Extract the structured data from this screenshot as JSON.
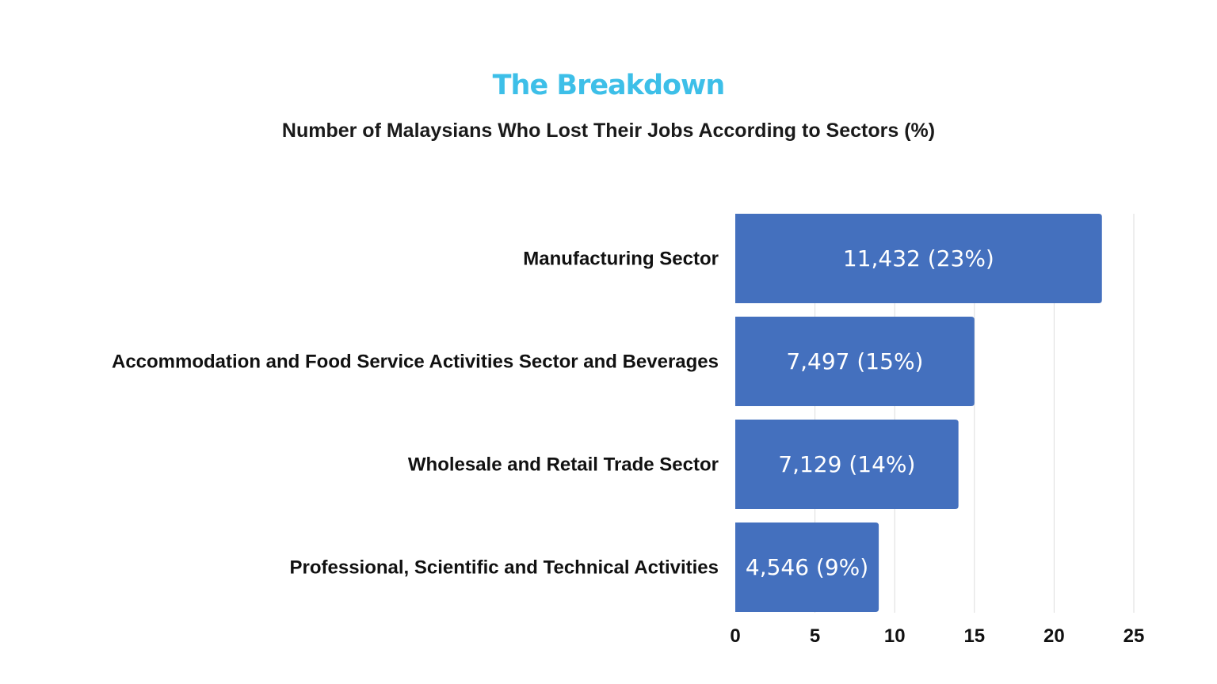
{
  "chart_data": {
    "type": "bar",
    "orientation": "horizontal",
    "title": "The Breakdown",
    "subtitle": "Number of Malaysians Who Lost Their Jobs  According to Sectors (%)",
    "categories": [
      "Manufacturing Sector",
      "Accommodation and Food Service Activities Sector and Beverages",
      "Wholesale and Retail Trade Sector",
      "Professional, Scientific and Technical Activities"
    ],
    "values": [
      23,
      15,
      14,
      9
    ],
    "data_labels": [
      "11,432 (23%)",
      "7,497 (15%)",
      "7,129 (14%)",
      "4,546 (9%)"
    ],
    "xticks": [
      "0",
      "5",
      "10",
      "15",
      "20",
      "25"
    ],
    "xlim": [
      0,
      25
    ],
    "grid": "vertical",
    "legend": "none",
    "colors": {
      "bar": "#4470be",
      "title": "#3dbfe8",
      "grid": "#dddddd"
    }
  }
}
